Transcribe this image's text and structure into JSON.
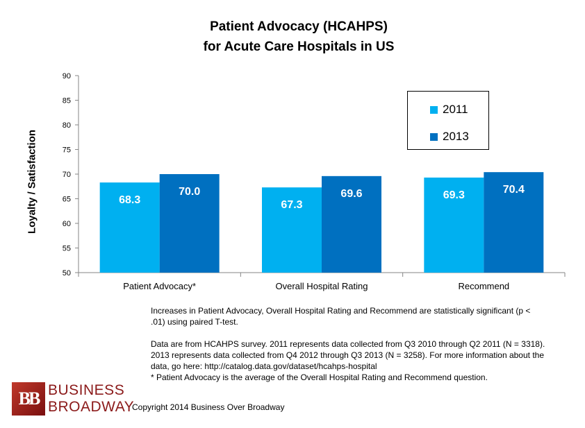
{
  "chart_data": {
    "type": "bar",
    "title_line1": "Patient Advocacy (HCAHPS)",
    "title_line2": "for Acute Care Hospitals in US",
    "ylabel": "Loyalty / Satisfaction",
    "xlabel": "",
    "ylim": [
      50,
      90
    ],
    "yticks": [
      50,
      55,
      60,
      65,
      70,
      75,
      80,
      85,
      90
    ],
    "categories": [
      "Patient Advocacy*",
      "Overall Hospital Rating",
      "Recommend"
    ],
    "series": [
      {
        "name": "2011",
        "values": [
          68.3,
          67.3,
          69.3
        ],
        "labels": [
          "68.3",
          "67.3",
          "69.3"
        ],
        "color": "#00b0f0"
      },
      {
        "name": "2013",
        "values": [
          70.0,
          69.6,
          70.4
        ],
        "labels": [
          "70.0",
          "69.6",
          "70.4"
        ],
        "color": "#0070c0"
      }
    ],
    "legend_position": "top-right",
    "grid": false
  },
  "notes": {
    "significance": "Increases in Patient Advocacy, Overall Hospital Rating and Recommend are statistically significant (p < .01) using paired T-test.",
    "source": "Data are from HCAHPS survey. 2011 represents data collected from Q3 2010 through Q2 2011 (N = 3318). 2013 represents data collected from Q4 2012 through Q3 2013 (N = 3258). For more information about the data, go here: http://catalog.data.gov/dataset/hcahps-hospital",
    "footnote": "* Patient Advocacy is the average of the Overall Hospital Rating and Recommend question."
  },
  "logo": {
    "mark": "BB",
    "line1": "BUSINESS",
    "line2": "BROADWAY"
  },
  "copyright": "Copyright 2014 Business Over Broadway"
}
